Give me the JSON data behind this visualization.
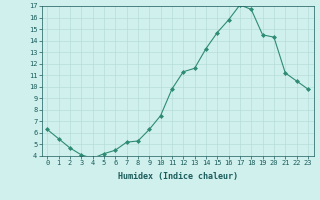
{
  "x": [
    0,
    1,
    2,
    3,
    4,
    5,
    6,
    7,
    8,
    9,
    10,
    11,
    12,
    13,
    14,
    15,
    16,
    17,
    18,
    19,
    20,
    21,
    22,
    23
  ],
  "y": [
    6.3,
    5.5,
    4.7,
    4.1,
    3.8,
    4.2,
    4.5,
    5.2,
    5.3,
    6.3,
    7.5,
    9.8,
    11.3,
    11.6,
    13.3,
    14.7,
    15.8,
    17.1,
    16.7,
    14.5,
    14.3,
    11.2,
    10.5,
    9.8
  ],
  "xlabel": "Humidex (Indice chaleur)",
  "ylim": [
    4,
    17
  ],
  "xlim": [
    -0.5,
    23.5
  ],
  "yticks": [
    4,
    5,
    6,
    7,
    8,
    9,
    10,
    11,
    12,
    13,
    14,
    15,
    16,
    17
  ],
  "xticks": [
    0,
    1,
    2,
    3,
    4,
    5,
    6,
    7,
    8,
    9,
    10,
    11,
    12,
    13,
    14,
    15,
    16,
    17,
    18,
    19,
    20,
    21,
    22,
    23
  ],
  "line_color": "#2e8b74",
  "marker_color": "#2e8b74",
  "bg_color": "#cff0ec",
  "grid_color": "#b8ddd8",
  "font_color": "#1a5c5c",
  "tick_font_size": 5.0,
  "xlabel_font_size": 6.0
}
